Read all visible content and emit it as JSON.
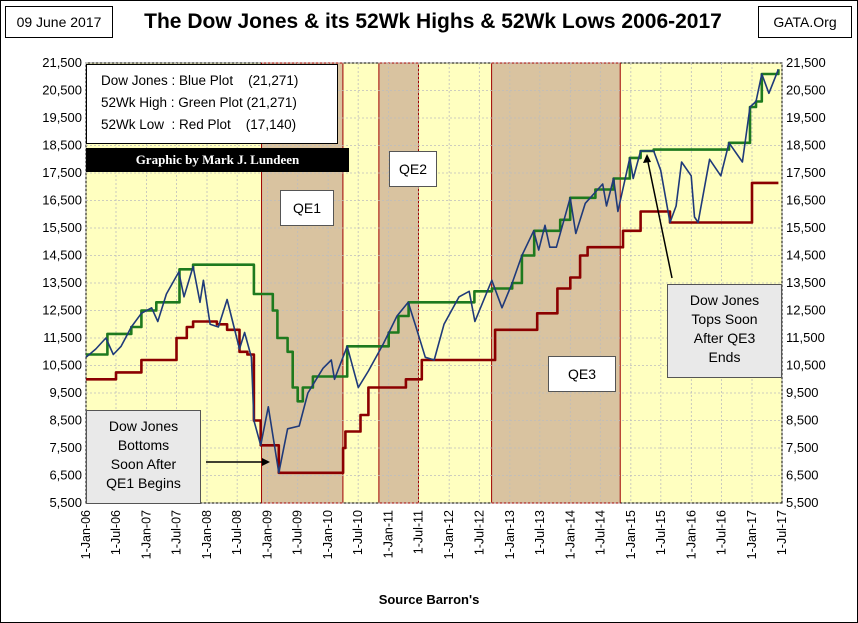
{
  "header": {
    "date": "09 June 2017",
    "title": "The Dow Jones & its 52Wk Highs & 52Wk Lows 2006-2017",
    "site": "GATA.Org"
  },
  "legend": {
    "lines": [
      "Dow Jones : Blue Plot    (21,271)",
      "52Wk High : Green Plot (21,271)",
      "52Wk Low  : Red Plot    (17,140)"
    ]
  },
  "credit": "Graphic by Mark J. Lundeen",
  "annotations": {
    "qe1": "QE1",
    "qe2": "QE2",
    "qe3": "QE3",
    "bottom_callout": [
      "Dow Jones",
      "Bottoms",
      "Soon After",
      "QE1 Begins"
    ],
    "top_callout": [
      "Dow Jones",
      "Tops Soon",
      "After QE3",
      "Ends"
    ]
  },
  "colors": {
    "plot_bg": "#ffffc0",
    "qe_shade": "#d9c3a0",
    "qe_border": "#a00000",
    "dow": "#1f3a7a",
    "high": "#1e7a1e",
    "low": "#8b0000"
  },
  "chart_data": {
    "type": "line",
    "xlabel": "Source Barron's",
    "x_ticks": [
      "1-Jan-06",
      "1-Jul-06",
      "1-Jan-07",
      "1-Jul-07",
      "1-Jan-08",
      "1-Jul-08",
      "1-Jan-09",
      "1-Jul-09",
      "1-Jan-10",
      "1-Jul-10",
      "1-Jan-11",
      "1-Jul-11",
      "1-Jan-12",
      "1-Jul-12",
      "1-Jan-13",
      "1-Jul-13",
      "1-Jan-14",
      "1-Jul-14",
      "1-Jan-15",
      "1-Jul-15",
      "1-Jan-16",
      "1-Jul-16",
      "1-Jan-17",
      "1-Jul-17"
    ],
    "y_ticks": [
      5500,
      6500,
      7500,
      8500,
      9500,
      10500,
      11500,
      12500,
      13500,
      14500,
      15500,
      16500,
      17500,
      18500,
      19500,
      20500,
      21500
    ],
    "y_tick_labels": [
      "5,500",
      "6,500",
      "7,500",
      "8,500",
      "9,500",
      "10,500",
      "11,500",
      "12,500",
      "13,500",
      "14,500",
      "15,500",
      "16,500",
      "17,500",
      "18,500",
      "19,500",
      "20,500",
      "21,500"
    ],
    "ylim": [
      5500,
      21500
    ],
    "x_range": [
      "2006-01-01",
      "2017-07-01"
    ],
    "qe_periods": [
      {
        "name": "QE1",
        "start": "2008-11-25",
        "end": "2010-03-31"
      },
      {
        "name": "QE2",
        "start": "2010-11-03",
        "end": "2011-06-30"
      },
      {
        "name": "QE3",
        "start": "2012-09-13",
        "end": "2014-10-29"
      }
    ],
    "series": [
      {
        "name": "Dow Jones",
        "points": [
          [
            "2006-01-01",
            10800
          ],
          [
            "2006-03-01",
            11100
          ],
          [
            "2006-05-01",
            11500
          ],
          [
            "2006-06-15",
            10900
          ],
          [
            "2006-08-01",
            11200
          ],
          [
            "2006-10-01",
            11900
          ],
          [
            "2006-12-01",
            12400
          ],
          [
            "2007-02-01",
            12600
          ],
          [
            "2007-03-10",
            12100
          ],
          [
            "2007-05-01",
            13100
          ],
          [
            "2007-07-15",
            13900
          ],
          [
            "2007-08-15",
            13000
          ],
          [
            "2007-10-09",
            14100
          ],
          [
            "2007-11-20",
            12800
          ],
          [
            "2007-12-10",
            13600
          ],
          [
            "2008-01-20",
            12000
          ],
          [
            "2008-03-10",
            11900
          ],
          [
            "2008-05-01",
            12900
          ],
          [
            "2008-07-15",
            11100
          ],
          [
            "2008-08-15",
            11700
          ],
          [
            "2008-09-25",
            10800
          ],
          [
            "2008-10-10",
            8500
          ],
          [
            "2008-11-20",
            7600
          ],
          [
            "2009-01-05",
            9000
          ],
          [
            "2009-03-09",
            6600
          ],
          [
            "2009-05-01",
            8200
          ],
          [
            "2009-07-10",
            8300
          ],
          [
            "2009-09-01",
            9500
          ],
          [
            "2009-12-01",
            10400
          ],
          [
            "2010-01-20",
            10700
          ],
          [
            "2010-02-08",
            10000
          ],
          [
            "2010-04-26",
            11200
          ],
          [
            "2010-07-02",
            9700
          ],
          [
            "2010-09-01",
            10300
          ],
          [
            "2010-12-01",
            11300
          ],
          [
            "2011-02-20",
            12300
          ],
          [
            "2011-04-29",
            12800
          ],
          [
            "2011-06-15",
            11900
          ],
          [
            "2011-08-10",
            10800
          ],
          [
            "2011-10-03",
            10700
          ],
          [
            "2011-12-01",
            12000
          ],
          [
            "2012-03-01",
            13000
          ],
          [
            "2012-05-01",
            13200
          ],
          [
            "2012-06-04",
            12100
          ],
          [
            "2012-09-14",
            13600
          ],
          [
            "2012-11-15",
            12600
          ],
          [
            "2013-01-15",
            13500
          ],
          [
            "2013-03-15",
            14500
          ],
          [
            "2013-05-25",
            15400
          ],
          [
            "2013-06-24",
            14700
          ],
          [
            "2013-08-01",
            15600
          ],
          [
            "2013-08-30",
            14800
          ],
          [
            "2013-10-09",
            14800
          ],
          [
            "2013-12-31",
            16600
          ],
          [
            "2014-02-03",
            15300
          ],
          [
            "2014-04-01",
            16400
          ],
          [
            "2014-07-15",
            17100
          ],
          [
            "2014-08-07",
            16300
          ],
          [
            "2014-09-19",
            17300
          ],
          [
            "2014-10-15",
            16100
          ],
          [
            "2014-12-26",
            18050
          ],
          [
            "2015-01-15",
            17300
          ],
          [
            "2015-03-01",
            18300
          ],
          [
            "2015-05-19",
            18300
          ],
          [
            "2015-06-30",
            17600
          ],
          [
            "2015-08-25",
            15700
          ],
          [
            "2015-10-01",
            16300
          ],
          [
            "2015-11-03",
            17900
          ],
          [
            "2015-12-31",
            17400
          ],
          [
            "2016-01-20",
            15900
          ],
          [
            "2016-02-11",
            15700
          ],
          [
            "2016-04-20",
            18000
          ],
          [
            "2016-06-27",
            17400
          ],
          [
            "2016-08-15",
            18600
          ],
          [
            "2016-11-04",
            17900
          ],
          [
            "2016-12-20",
            19900
          ],
          [
            "2017-01-25",
            20100
          ],
          [
            "2017-03-01",
            21100
          ],
          [
            "2017-04-13",
            20400
          ],
          [
            "2017-06-09",
            21271
          ]
        ]
      },
      {
        "name": "52Wk High",
        "points": [
          [
            "2006-01-01",
            10900
          ],
          [
            "2006-05-10",
            11650
          ],
          [
            "2006-10-01",
            11900
          ],
          [
            "2006-12-01",
            12500
          ],
          [
            "2007-03-01",
            12800
          ],
          [
            "2007-07-19",
            14000
          ],
          [
            "2007-10-09",
            14165
          ],
          [
            "2008-10-09",
            14165
          ],
          [
            "2008-10-10",
            13100
          ],
          [
            "2009-01-01",
            13100
          ],
          [
            "2009-02-01",
            12500
          ],
          [
            "2009-03-01",
            11500
          ],
          [
            "2009-05-01",
            11000
          ],
          [
            "2009-06-01",
            9700
          ],
          [
            "2009-07-01",
            9200
          ],
          [
            "2009-08-01",
            9700
          ],
          [
            "2009-10-01",
            10100
          ],
          [
            "2010-04-26",
            11200
          ],
          [
            "2011-01-01",
            11700
          ],
          [
            "2011-03-01",
            12300
          ],
          [
            "2011-05-01",
            12800
          ],
          [
            "2012-05-01",
            12800
          ],
          [
            "2012-06-01",
            13200
          ],
          [
            "2012-09-15",
            13300
          ],
          [
            "2013-01-15",
            13500
          ],
          [
            "2013-03-15",
            14500
          ],
          [
            "2013-05-28",
            15400
          ],
          [
            "2013-11-01",
            15800
          ],
          [
            "2013-12-31",
            16600
          ],
          [
            "2014-03-01",
            16600
          ],
          [
            "2014-06-01",
            16900
          ],
          [
            "2014-09-19",
            17300
          ],
          [
            "2014-12-26",
            18050
          ],
          [
            "2015-03-01",
            18300
          ],
          [
            "2015-05-19",
            18350
          ],
          [
            "2016-08-15",
            18600
          ],
          [
            "2016-12-20",
            19900
          ],
          [
            "2017-01-25",
            20100
          ],
          [
            "2017-03-01",
            21100
          ],
          [
            "2017-06-09",
            21271
          ]
        ]
      },
      {
        "name": "52Wk Low",
        "points": [
          [
            "2006-01-01",
            10000
          ],
          [
            "2006-07-01",
            10250
          ],
          [
            "2006-12-01",
            10700
          ],
          [
            "2007-07-01",
            11500
          ],
          [
            "2007-09-01",
            11900
          ],
          [
            "2007-10-09",
            12100
          ],
          [
            "2008-03-01",
            12000
          ],
          [
            "2008-05-01",
            11800
          ],
          [
            "2008-07-15",
            11000
          ],
          [
            "2008-09-01",
            10900
          ],
          [
            "2008-10-10",
            8500
          ],
          [
            "2008-11-20",
            7600
          ],
          [
            "2009-03-09",
            6600
          ],
          [
            "2010-03-09",
            6600
          ],
          [
            "2010-04-01",
            7500
          ],
          [
            "2010-04-15",
            8100
          ],
          [
            "2010-07-15",
            8700
          ],
          [
            "2010-09-01",
            9700
          ],
          [
            "2011-01-01",
            9700
          ],
          [
            "2011-04-15",
            10000
          ],
          [
            "2011-07-20",
            10700
          ],
          [
            "2012-10-01",
            10700
          ],
          [
            "2012-10-04",
            11800
          ],
          [
            "2013-06-15",
            12400
          ],
          [
            "2013-10-15",
            13300
          ],
          [
            "2014-01-01",
            13700
          ],
          [
            "2014-03-01",
            14500
          ],
          [
            "2014-04-15",
            14800
          ],
          [
            "2014-11-15",
            15400
          ],
          [
            "2015-03-01",
            16100
          ],
          [
            "2015-08-25",
            15700
          ],
          [
            "2016-12-01",
            15700
          ],
          [
            "2017-01-01",
            17140
          ],
          [
            "2017-06-09",
            17140
          ]
        ]
      }
    ]
  }
}
